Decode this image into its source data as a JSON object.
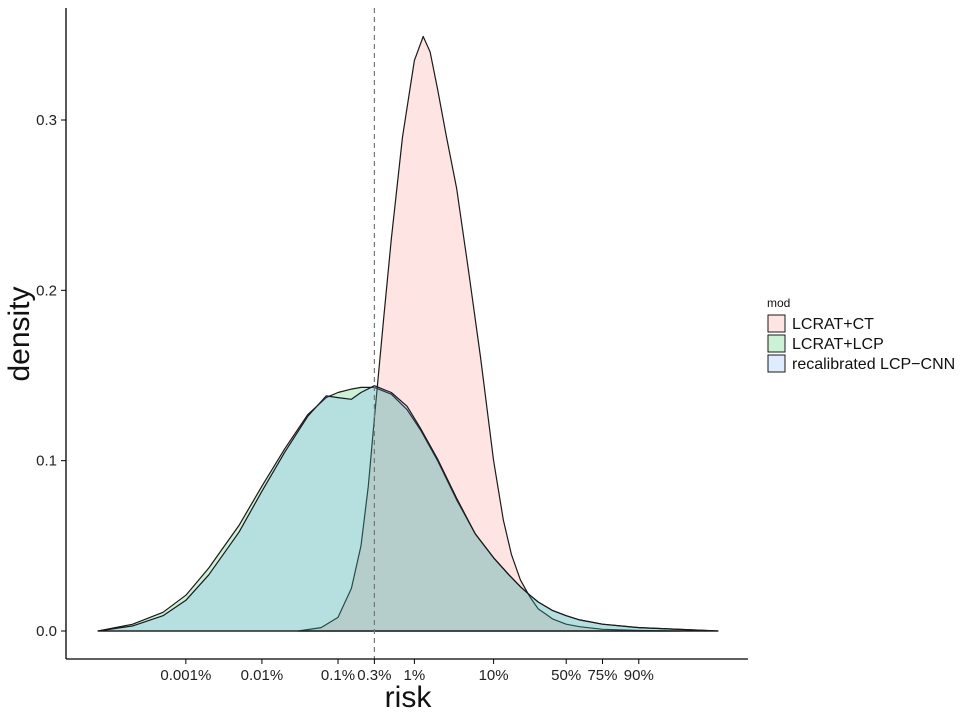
{
  "chart_data": {
    "type": "area",
    "subtype": "density",
    "xlabel": "risk",
    "ylabel": "density",
    "x_scale": "logit",
    "x_ticks": [
      {
        "label": "0.001%",
        "value": 0.001
      },
      {
        "label": "0.01%",
        "value": 0.01
      },
      {
        "label": "0.1%",
        "value": 0.1
      },
      {
        "label": "0.3%",
        "value": 0.3
      },
      {
        "label": "1%",
        "value": 1
      },
      {
        "label": "10%",
        "value": 10
      },
      {
        "label": "50%",
        "value": 50
      },
      {
        "label": "75%",
        "value": 75
      },
      {
        "label": "90%",
        "value": 90
      }
    ],
    "y_ticks": [
      {
        "label": "0.0",
        "value": 0.0
      },
      {
        "label": "0.1",
        "value": 0.1
      },
      {
        "label": "0.2",
        "value": 0.2
      },
      {
        "label": "0.3",
        "value": 0.3
      }
    ],
    "ylim": [
      -0.017,
      0.365
    ],
    "xlim_percent": [
      7e-05,
      99
    ],
    "reference_line": {
      "x": 0.3,
      "style": "dashed",
      "color": "#777777"
    },
    "grid": false,
    "legend": {
      "title": "mod",
      "position": "right",
      "entries": [
        "LCRAT+CT",
        "LCRAT+LCP",
        "recalibrated LCP−CNN"
      ]
    },
    "series": [
      {
        "name": "LCRAT+CT",
        "fill": "#f8766d",
        "x": [
          0.03,
          0.06,
          0.1,
          0.15,
          0.2,
          0.25,
          0.3,
          0.4,
          0.5,
          0.7,
          1,
          1.3,
          1.6,
          2,
          2.6,
          3.5,
          5,
          7,
          10,
          13,
          16,
          20,
          25,
          30,
          35,
          40,
          50,
          60,
          75,
          90,
          97
        ],
        "y": [
          0.0,
          0.002,
          0.008,
          0.025,
          0.05,
          0.085,
          0.125,
          0.185,
          0.23,
          0.29,
          0.335,
          0.349,
          0.34,
          0.318,
          0.29,
          0.26,
          0.21,
          0.16,
          0.1,
          0.065,
          0.045,
          0.03,
          0.02,
          0.013,
          0.01,
          0.007,
          0.004,
          0.0025,
          0.001,
          0.0003,
          0.0
        ]
      },
      {
        "name": "LCRAT+LCP",
        "fill": "#00ba38",
        "x": [
          7e-05,
          0.0002,
          0.0005,
          0.001,
          0.002,
          0.005,
          0.01,
          0.02,
          0.04,
          0.07,
          0.1,
          0.15,
          0.2,
          0.3,
          0.5,
          0.8,
          1.2,
          2,
          3.5,
          6,
          10,
          15,
          20,
          25,
          30,
          40,
          50,
          60,
          75,
          90,
          99
        ],
        "y": [
          0.0,
          0.004,
          0.011,
          0.021,
          0.037,
          0.062,
          0.085,
          0.107,
          0.127,
          0.137,
          0.14,
          0.142,
          0.143,
          0.143,
          0.139,
          0.13,
          0.118,
          0.1,
          0.077,
          0.057,
          0.043,
          0.033,
          0.026,
          0.021,
          0.017,
          0.012,
          0.009,
          0.0065,
          0.004,
          0.002,
          0.0
        ]
      },
      {
        "name": "recalibrated LCP−CNN",
        "fill": "#619cff",
        "x": [
          7e-05,
          0.0002,
          0.0005,
          0.001,
          0.002,
          0.005,
          0.01,
          0.02,
          0.04,
          0.07,
          0.1,
          0.15,
          0.2,
          0.3,
          0.5,
          0.8,
          1.2,
          2,
          3.5,
          6,
          10,
          15,
          20,
          25,
          30,
          40,
          50,
          60,
          75,
          90,
          99
        ],
        "y": [
          0.0,
          0.003,
          0.009,
          0.018,
          0.033,
          0.058,
          0.082,
          0.105,
          0.126,
          0.138,
          0.137,
          0.136,
          0.14,
          0.144,
          0.14,
          0.132,
          0.119,
          0.101,
          0.078,
          0.057,
          0.043,
          0.033,
          0.026,
          0.021,
          0.017,
          0.012,
          0.009,
          0.0065,
          0.004,
          0.002,
          0.0
        ]
      }
    ]
  }
}
